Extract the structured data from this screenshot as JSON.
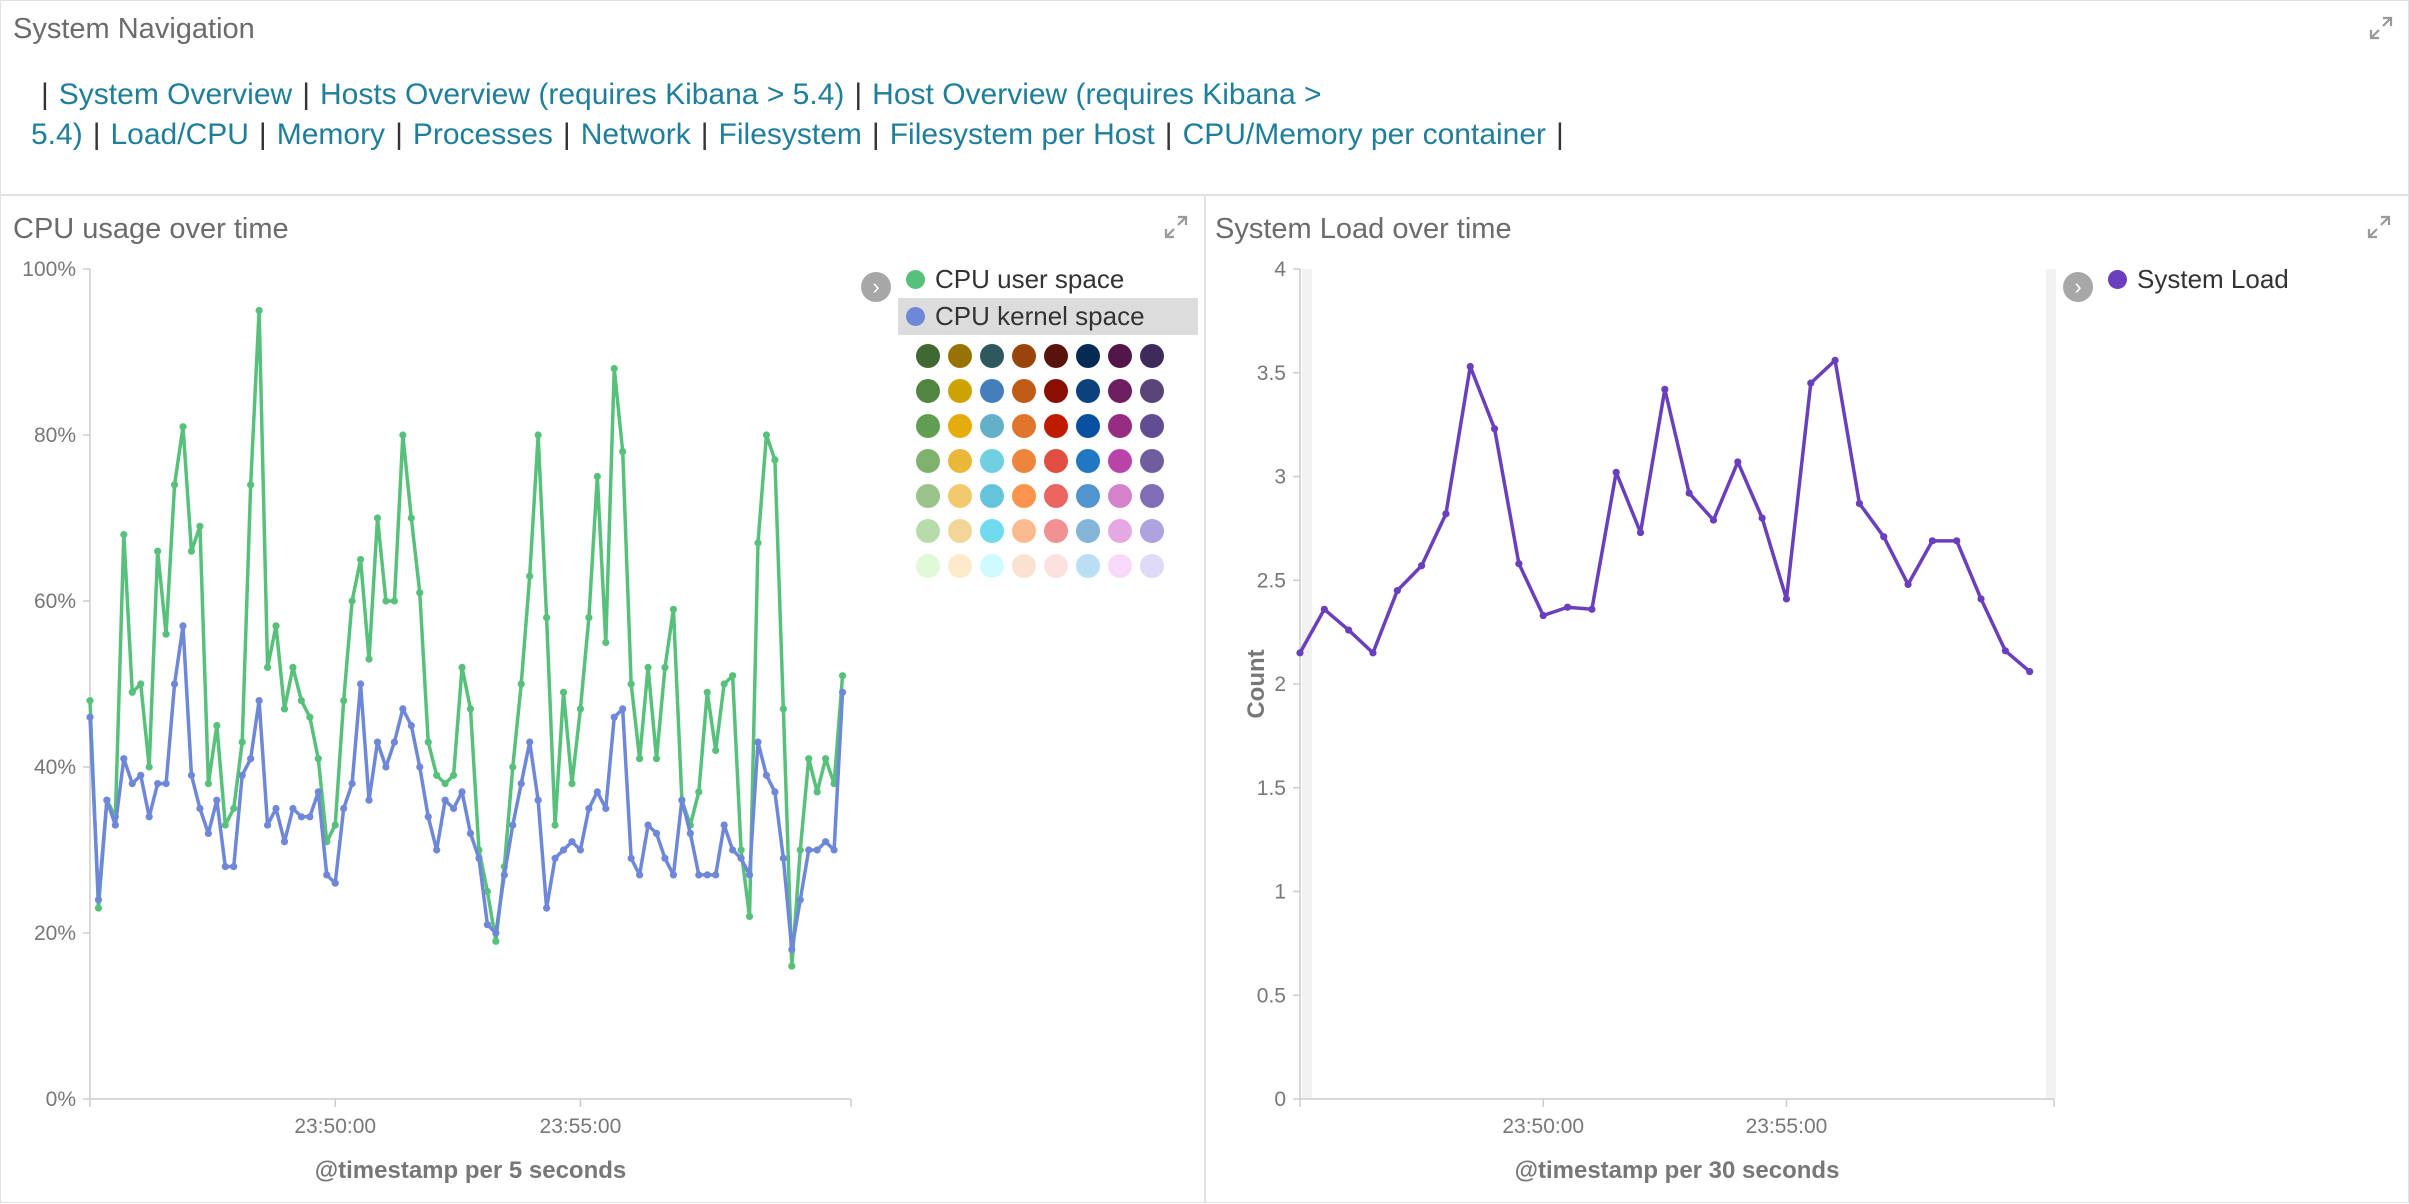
{
  "nav_panel": {
    "title": "System Navigation",
    "links": [
      {
        "label": "System Overview"
      },
      {
        "label": "Hosts Overview (requires Kibana > 5.4)"
      },
      {
        "label": "Host Overview (requires Kibana > 5.4)"
      },
      {
        "label": "Load/CPU"
      },
      {
        "label": "Memory"
      },
      {
        "label": "Processes"
      },
      {
        "label": "Network"
      },
      {
        "label": "Filesystem"
      },
      {
        "label": "Filesystem per Host"
      },
      {
        "label": "CPU/Memory per container"
      }
    ],
    "separator": "|"
  },
  "cpu_panel": {
    "title": "CPU usage over time",
    "legend": {
      "items": [
        {
          "label": "CPU user space",
          "color": "#57c17b"
        },
        {
          "label": "CPU kernel space",
          "color": "#6f87d8"
        }
      ],
      "palette": [
        [
          "#3f6833",
          "#967302",
          "#2f575e",
          "#99440a",
          "#58140c",
          "#052b51",
          "#511749",
          "#3f2b5b"
        ],
        [
          "#508642",
          "#cca300",
          "#447ebc",
          "#c15c17",
          "#890f02",
          "#0a437c",
          "#6d1f62",
          "#584477"
        ],
        [
          "#629e51",
          "#e5ac0e",
          "#64b0c8",
          "#e0752d",
          "#bf1b00",
          "#0a50a1",
          "#962d82",
          "#614d93"
        ],
        [
          "#7eb26d",
          "#eab839",
          "#6ed0e0",
          "#ef843c",
          "#e24d42",
          "#1f78c1",
          "#ba43a9",
          "#705da0"
        ],
        [
          "#9ac48a",
          "#f2c96d",
          "#65c5db",
          "#f9934e",
          "#ea6460",
          "#5195ce",
          "#d683ce",
          "#806eb7"
        ],
        [
          "#b7dbab",
          "#f4d598",
          "#70dbed",
          "#f9ba8f",
          "#f29191",
          "#82b5d8",
          "#e5a8e2",
          "#aea2e0"
        ],
        [
          "#e0f9d7",
          "#fceaca",
          "#cffaff",
          "#f9e2d2",
          "#fce2de",
          "#badff4",
          "#f9d9f9",
          "#dedaf7"
        ]
      ]
    }
  },
  "load_panel": {
    "title": "System Load over time",
    "legend": {
      "items": [
        {
          "label": "System Load",
          "color": "#6a3fbd"
        }
      ]
    }
  },
  "chart_data": [
    {
      "type": "line",
      "title": "CPU usage over time",
      "xlabel": "@timestamp per 5 seconds",
      "ylabel": "",
      "ylim": [
        0,
        100
      ],
      "y_ticks": [
        "0%",
        "20%",
        "40%",
        "60%",
        "80%",
        "100%"
      ],
      "x_range": [
        0,
        90
      ],
      "x_ticks": [
        {
          "x": 29,
          "label": "23:50:00"
        },
        {
          "x": 58,
          "label": "23:55:00"
        }
      ],
      "series": [
        {
          "name": "CPU user space",
          "color": "#57c17b",
          "values": [
            48,
            23,
            36,
            34,
            68,
            49,
            50,
            40,
            66,
            56,
            74,
            81,
            66,
            69,
            38,
            45,
            33,
            35,
            43,
            74,
            95,
            52,
            57,
            47,
            52,
            48,
            46,
            41,
            31,
            33,
            48,
            60,
            65,
            53,
            70,
            60,
            60,
            80,
            70,
            61,
            43,
            39,
            38,
            39,
            52,
            47,
            30,
            25,
            19,
            28,
            40,
            50,
            63,
            80,
            58,
            33,
            49,
            38,
            47,
            58,
            75,
            55,
            88,
            78,
            50,
            41,
            52,
            41,
            52,
            59,
            36,
            33,
            37,
            49,
            42,
            50,
            51,
            30,
            22,
            67,
            80,
            77,
            47,
            16,
            30,
            41,
            37,
            41,
            38,
            51
          ]
        },
        {
          "name": "CPU kernel space",
          "color": "#6f87d8",
          "values": [
            46,
            24,
            36,
            33,
            41,
            38,
            39,
            34,
            38,
            38,
            50,
            57,
            39,
            35,
            32,
            36,
            28,
            28,
            39,
            41,
            48,
            33,
            35,
            31,
            35,
            34,
            34,
            37,
            27,
            26,
            35,
            38,
            50,
            36,
            43,
            40,
            43,
            47,
            45,
            40,
            34,
            30,
            36,
            35,
            37,
            32,
            29,
            21,
            20,
            27,
            33,
            38,
            43,
            36,
            23,
            29,
            30,
            31,
            30,
            35,
            37,
            35,
            46,
            47,
            29,
            27,
            33,
            32,
            29,
            27,
            36,
            32,
            27,
            27,
            27,
            33,
            30,
            29,
            27,
            43,
            39,
            37,
            29,
            18,
            24,
            30,
            30,
            31,
            30,
            49
          ]
        }
      ]
    },
    {
      "type": "line",
      "title": "System Load over time",
      "xlabel": "@timestamp per 30 seconds",
      "ylabel": "Count",
      "ylim": [
        0,
        4
      ],
      "y_ticks": [
        "0",
        "0.5",
        "1",
        "1.5",
        "2",
        "2.5",
        "3",
        "3.5",
        "4"
      ],
      "x_range": [
        0,
        31
      ],
      "x_ticks": [
        {
          "x": 10,
          "label": "23:50:00"
        },
        {
          "x": 20,
          "label": "23:55:00"
        }
      ],
      "series": [
        {
          "name": "System Load",
          "color": "#6a3fbd",
          "values": [
            2.15,
            2.36,
            2.26,
            2.15,
            2.45,
            2.57,
            2.82,
            3.53,
            3.23,
            2.58,
            2.33,
            2.37,
            2.36,
            3.02,
            2.73,
            3.42,
            2.92,
            2.79,
            3.07,
            2.8,
            2.41,
            3.45,
            3.56,
            2.87,
            2.71,
            2.48,
            2.69,
            2.69,
            2.41,
            2.16,
            2.06
          ]
        }
      ]
    }
  ]
}
